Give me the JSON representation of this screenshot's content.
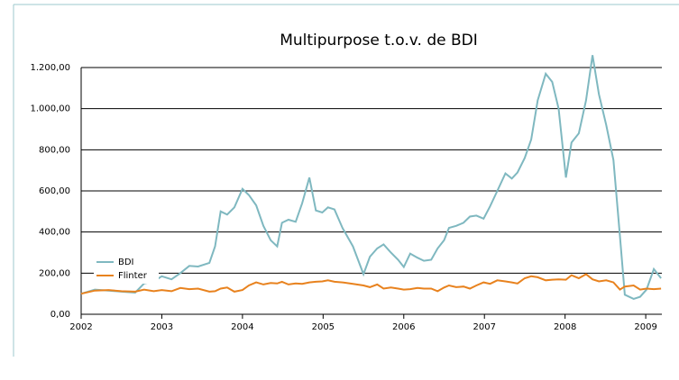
{
  "chart_data": {
    "type": "line",
    "title": "Multipurpose t.o.v. de BDI",
    "xlim": [
      2002,
      2009.2
    ],
    "xticks": [
      2002,
      2003,
      2004,
      2005,
      2006,
      2007,
      2008,
      2009
    ],
    "ylim": [
      0,
      1200
    ],
    "yticks": [
      {
        "value": 0,
        "label": "0,00"
      },
      {
        "value": 200,
        "label": "200,00"
      },
      {
        "value": 400,
        "label": "400,00"
      },
      {
        "value": 600,
        "label": "600,00"
      },
      {
        "value": 800,
        "label": "800,00"
      },
      {
        "value": 1000,
        "label": "1.000,00"
      },
      {
        "value": 1200,
        "label": "1.200,00"
      }
    ],
    "grid": true,
    "legend": "left",
    "x": [
      2002.0,
      2002.17,
      2002.34,
      2002.5,
      2002.67,
      2002.78,
      2002.9,
      2003.0,
      2003.12,
      2003.23,
      2003.34,
      2003.45,
      2003.59,
      2003.66,
      2003.73,
      2003.81,
      2003.9,
      2004.0,
      2004.08,
      2004.17,
      2004.26,
      2004.35,
      2004.43,
      2004.49,
      2004.57,
      2004.66,
      2004.74,
      2004.83,
      2004.91,
      2004.99,
      2005.06,
      2005.14,
      2005.24,
      2005.37,
      2005.5,
      2005.58,
      2005.67,
      2005.75,
      2005.84,
      2005.93,
      2006.0,
      2006.08,
      2006.17,
      2006.25,
      2006.34,
      2006.42,
      2006.5,
      2006.56,
      2006.65,
      2006.74,
      2006.82,
      2006.9,
      2006.99,
      2007.07,
      2007.16,
      2007.26,
      2007.34,
      2007.41,
      2007.5,
      2007.58,
      2007.66,
      2007.76,
      2007.84,
      2007.92,
      2008.01,
      2008.08,
      2008.17,
      2008.26,
      2008.34,
      2008.42,
      2008.51,
      2008.6,
      2008.68,
      2008.74,
      2008.85,
      2008.93,
      2009.01,
      2009.1,
      2009.19
    ],
    "series": [
      {
        "name": "BDI",
        "color": "#7fb8c0",
        "values": [
          100,
          120,
          115,
          110,
          105,
          150,
          160,
          185,
          170,
          200,
          235,
          232,
          250,
          330,
          500,
          485,
          520,
          610,
          580,
          530,
          430,
          360,
          330,
          445,
          460,
          450,
          540,
          665,
          505,
          495,
          520,
          510,
          420,
          330,
          195,
          280,
          320,
          340,
          300,
          265,
          230,
          295,
          275,
          260,
          265,
          320,
          360,
          420,
          430,
          445,
          475,
          480,
          465,
          525,
          600,
          685,
          660,
          690,
          760,
          850,
          1040,
          1170,
          1130,
          1000,
          665,
          835,
          880,
          1040,
          1260,
          1070,
          920,
          750,
          380,
          95,
          75,
          85,
          120,
          220,
          175
        ]
      },
      {
        "name": "Flinter",
        "color": "#e8821e",
        "values": [
          100,
          115,
          118,
          112,
          110,
          120,
          112,
          118,
          112,
          128,
          122,
          125,
          110,
          112,
          125,
          130,
          110,
          118,
          140,
          155,
          145,
          152,
          150,
          158,
          145,
          150,
          148,
          155,
          158,
          160,
          165,
          158,
          155,
          148,
          140,
          132,
          145,
          125,
          130,
          125,
          120,
          122,
          128,
          125,
          125,
          112,
          130,
          140,
          132,
          135,
          125,
          140,
          155,
          148,
          165,
          160,
          155,
          150,
          175,
          185,
          180,
          165,
          168,
          170,
          168,
          190,
          175,
          195,
          170,
          160,
          165,
          155,
          120,
          135,
          140,
          120,
          125,
          122,
          125
        ]
      }
    ]
  }
}
